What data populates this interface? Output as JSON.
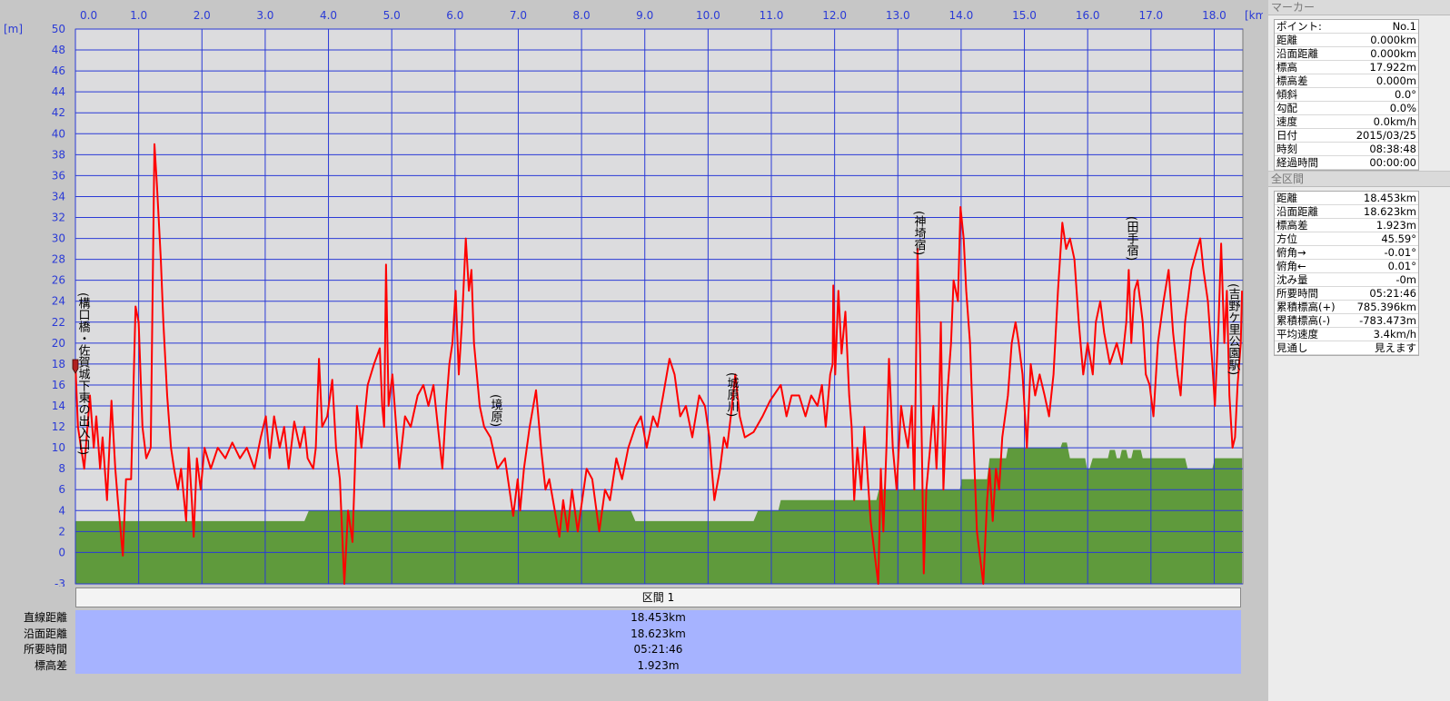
{
  "chart_data": {
    "type": "line",
    "x_axis_label": "[km]",
    "y_axis_label": "[m]",
    "xlim": [
      0,
      18.453
    ],
    "ylim": [
      -3,
      50
    ],
    "xticks": [
      {
        "value": 0,
        "label": "0.0"
      },
      {
        "value": 1,
        "label": "1.0"
      },
      {
        "value": 2,
        "label": "2.0"
      },
      {
        "value": 3,
        "label": "3.0"
      },
      {
        "value": 4,
        "label": "4.0"
      },
      {
        "value": 5,
        "label": "5.0"
      },
      {
        "value": 6,
        "label": "6.0"
      },
      {
        "value": 7,
        "label": "7.0"
      },
      {
        "value": 8,
        "label": "8.0"
      },
      {
        "value": 9,
        "label": "9.0"
      },
      {
        "value": 10,
        "label": "10.0"
      },
      {
        "value": 11,
        "label": "11.0"
      },
      {
        "value": 12,
        "label": "12.0"
      },
      {
        "value": 13,
        "label": "13.0"
      },
      {
        "value": 14,
        "label": "14.0"
      },
      {
        "value": 15,
        "label": "15.0"
      },
      {
        "value": 16,
        "label": "16.0"
      },
      {
        "value": 17,
        "label": "17.0"
      },
      {
        "value": 18,
        "label": "18.0"
      }
    ],
    "yticks": [
      50,
      48,
      46,
      44,
      42,
      40,
      38,
      36,
      34,
      32,
      30,
      28,
      26,
      24,
      22,
      20,
      18,
      16,
      14,
      12,
      10,
      8,
      6,
      4,
      2,
      0,
      -3
    ],
    "grid": true,
    "grid_color": "#2a3ad6",
    "background": "#dcdcde",
    "series": [
      {
        "kind": "area",
        "color": "#5f9a3c",
        "x": [
          0,
          3.62,
          3.69,
          8.78,
          8.85,
          10.72,
          10.79,
          11.11,
          11.15,
          12.66,
          12.7,
          13.98,
          14.01,
          14.41,
          14.45,
          14.71,
          14.74,
          15.57,
          15.6,
          15.67,
          15.72,
          15.96,
          15.99,
          16.03,
          16.08,
          16.32,
          16.35,
          16.43,
          16.46,
          16.51,
          16.54,
          16.61,
          16.64,
          16.69,
          16.72,
          16.84,
          16.87,
          17.54,
          17.58,
          17.97,
          18.01,
          18.44
        ],
        "values": [
          3,
          3,
          4,
          4,
          3,
          3,
          4,
          4,
          5,
          5,
          6,
          6,
          7,
          7,
          9,
          9,
          10,
          10,
          10.5,
          10.5,
          9,
          9,
          8,
          8,
          9,
          9,
          9.8,
          9.8,
          9,
          9,
          9.8,
          9.8,
          9,
          9,
          9.8,
          9.8,
          9,
          9,
          8,
          8,
          9,
          9
        ]
      },
      {
        "kind": "line",
        "color": "#ff0000",
        "x": [
          0,
          0.04,
          0.14,
          0.23,
          0.29,
          0.33,
          0.39,
          0.43,
          0.5,
          0.57,
          0.63,
          0.67,
          0.75,
          0.8,
          0.88,
          0.95,
          1.0,
          1.06,
          1.12,
          1.19,
          1.25,
          1.29,
          1.35,
          1.39,
          1.45,
          1.51,
          1.56,
          1.62,
          1.67,
          1.75,
          1.79,
          1.84,
          1.87,
          1.92,
          1.98,
          2.04,
          2.14,
          2.25,
          2.37,
          2.48,
          2.6,
          2.71,
          2.83,
          2.93,
          3.01,
          3.07,
          3.14,
          3.23,
          3.3,
          3.37,
          3.46,
          3.55,
          3.62,
          3.67,
          3.76,
          3.8,
          3.85,
          3.9,
          3.98,
          4.06,
          4.12,
          4.18,
          4.25,
          4.31,
          4.38,
          4.45,
          4.52,
          4.62,
          4.72,
          4.81,
          4.85,
          4.88,
          4.91,
          4.95,
          5.01,
          5.07,
          5.12,
          5.21,
          5.3,
          5.41,
          5.5,
          5.58,
          5.66,
          5.8,
          5.86,
          5.91,
          5.96,
          6.01,
          6.06,
          6.11,
          6.14,
          6.17,
          6.22,
          6.26,
          6.3,
          6.39,
          6.46,
          6.56,
          6.67,
          6.79,
          6.92,
          6.99,
          7.03,
          7.09,
          7.18,
          7.28,
          7.36,
          7.43,
          7.49,
          7.65,
          7.71,
          7.78,
          7.85,
          7.94,
          8.01,
          8.08,
          8.17,
          8.28,
          8.37,
          8.45,
          8.55,
          8.64,
          8.74,
          8.85,
          8.94,
          9.03,
          9.13,
          9.2,
          9.29,
          9.39,
          9.47,
          9.56,
          9.65,
          9.75,
          9.86,
          9.95,
          10.02,
          10.06,
          10.1,
          10.19,
          10.25,
          10.3,
          10.36,
          10.43,
          10.5,
          10.58,
          10.72,
          10.86,
          10.98,
          11.15,
          11.24,
          11.32,
          11.44,
          11.54,
          11.63,
          11.73,
          11.8,
          11.86,
          11.93,
          11.97,
          11.98,
          12.01,
          12.06,
          12.11,
          12.17,
          12.23,
          12.27,
          12.31,
          12.36,
          12.42,
          12.47,
          12.57,
          12.69,
          12.73,
          12.77,
          12.82,
          12.86,
          12.92,
          12.98,
          13.05,
          13.1,
          13.16,
          13.22,
          13.26,
          13.31,
          13.35,
          13.38,
          13.41,
          13.45,
          13.51,
          13.56,
          13.61,
          13.65,
          13.68,
          13.72,
          13.78,
          13.84,
          13.88,
          13.95,
          13.99,
          14.04,
          14.08,
          14.14,
          14.2,
          14.25,
          14.35,
          14.41,
          14.45,
          14.5,
          14.55,
          14.6,
          14.65,
          14.74,
          14.8,
          14.86,
          14.91,
          14.97,
          15.04,
          15.1,
          15.17,
          15.24,
          15.32,
          15.39,
          15.46,
          15.53,
          15.6,
          15.66,
          15.72,
          15.79,
          15.86,
          15.93,
          16.0,
          16.08,
          16.13,
          16.2,
          16.26,
          16.35,
          16.46,
          16.54,
          16.61,
          16.65,
          16.69,
          16.74,
          16.79,
          16.87,
          16.92,
          16.98,
          17.04,
          17.11,
          17.2,
          17.28,
          17.35,
          17.42,
          17.47,
          17.54,
          17.64,
          17.73,
          17.78,
          17.83,
          17.9,
          17.97,
          18.01,
          18.07,
          18.11,
          18.16,
          18.2,
          18.24,
          18.29,
          18.33,
          18.37,
          18.42,
          18.44
        ],
        "values": [
          18,
          12,
          8,
          15,
          10,
          13,
          8,
          11,
          5,
          14.5,
          8,
          5,
          -0.3,
          7,
          7,
          23.5,
          22,
          12,
          9,
          10,
          39,
          35,
          28,
          22,
          15,
          10,
          8,
          6,
          8,
          3,
          10,
          5,
          1.5,
          9,
          6,
          10,
          8,
          10,
          9,
          10.5,
          9,
          10,
          8,
          11,
          13,
          9,
          13,
          10,
          12,
          8,
          12.5,
          10,
          12,
          9,
          8,
          10,
          18.5,
          12,
          13,
          16.5,
          10,
          7,
          -3,
          4,
          1,
          14,
          10,
          16,
          18,
          19.5,
          14,
          12,
          27.5,
          14,
          17,
          12,
          8,
          13,
          12,
          15,
          16,
          14,
          16,
          8,
          14,
          18,
          20,
          25,
          17,
          22,
          26,
          30,
          25,
          27,
          20,
          14,
          12,
          11,
          8,
          9,
          3.5,
          7,
          4,
          8,
          12,
          15.5,
          10,
          6,
          7,
          1.5,
          5,
          2,
          6,
          2,
          5,
          8,
          7,
          2,
          6,
          5,
          9,
          7,
          10,
          12,
          13,
          10,
          13,
          12,
          15,
          18.5,
          17,
          13,
          14,
          11,
          15,
          14,
          11,
          8,
          5,
          8,
          11,
          10,
          13,
          17,
          13,
          11,
          11.5,
          13,
          14.5,
          16,
          13,
          15,
          15,
          13,
          15,
          14,
          16,
          12,
          17,
          18,
          25.5,
          17,
          25,
          19,
          23,
          15,
          12,
          5,
          10,
          6,
          12,
          3,
          -3,
          8,
          2,
          10,
          18.5,
          10,
          6,
          14,
          12,
          10,
          14,
          6,
          29,
          20,
          10,
          -2,
          6,
          10,
          14,
          8,
          14,
          22,
          6,
          15,
          20,
          26,
          24,
          33,
          30,
          25,
          20,
          10,
          2,
          -3,
          5,
          8,
          3,
          8,
          6,
          11,
          15,
          20,
          22,
          20,
          17,
          10,
          18,
          15,
          17,
          15,
          13,
          17,
          25,
          31.5,
          29,
          30,
          28,
          22,
          17,
          20,
          17,
          22,
          24,
          21,
          18,
          20,
          18,
          22,
          27,
          20,
          25,
          26,
          22,
          17,
          16,
          13,
          20,
          24,
          27,
          21,
          17,
          15,
          22,
          27,
          29,
          30,
          27,
          24,
          18,
          14,
          22,
          29.5,
          20,
          25,
          15,
          10,
          11,
          16,
          20,
          25
        ]
      }
    ],
    "annotations": [
      "(構口橋・佐賀城下東の出入口)",
      "(境原)",
      "(城原川)",
      "(神埼宿)",
      "(田手宿)",
      "(吉野ケ里公園駅)"
    ]
  },
  "section_table": {
    "header": "区間 1",
    "rows": [
      [
        "直線距離",
        "18.453km"
      ],
      [
        "沿面距離",
        "18.623km"
      ],
      [
        "所要時間",
        "05:21:46"
      ],
      [
        "標高差",
        "1.923m"
      ]
    ]
  },
  "marker_panel": {
    "title": "マーカー",
    "rows": [
      [
        "ポイント:",
        "No.1"
      ],
      [
        "距離",
        "0.000km"
      ],
      [
        "沿面距離",
        "0.000km"
      ],
      [
        "標高",
        "17.922m"
      ],
      [
        "標高差",
        "0.000m"
      ],
      [
        "傾斜",
        "0.0°"
      ],
      [
        "勾配",
        "0.0%"
      ],
      [
        "速度",
        "0.0km/h"
      ],
      [
        "日付",
        "2015/03/25"
      ],
      [
        "時刻",
        "08:38:48"
      ],
      [
        "経過時間",
        "00:00:00"
      ]
    ]
  },
  "total_panel": {
    "title": "全区間",
    "rows": [
      [
        "距離",
        "18.453km"
      ],
      [
        "沿面距離",
        "18.623km"
      ],
      [
        "標高差",
        "1.923m"
      ],
      [
        "方位",
        "45.59°"
      ],
      [
        "俯角→",
        "-0.01°"
      ],
      [
        "俯角←",
        "0.01°"
      ],
      [
        "沈み量",
        "-0m"
      ],
      [
        "所要時間",
        "05:21:46"
      ],
      [
        "累積標高(+)",
        "785.396km"
      ],
      [
        "累積標高(-)",
        "-783.473m"
      ],
      [
        "平均速度",
        "3.4km/h"
      ],
      [
        "見通し",
        "見えます"
      ]
    ]
  }
}
